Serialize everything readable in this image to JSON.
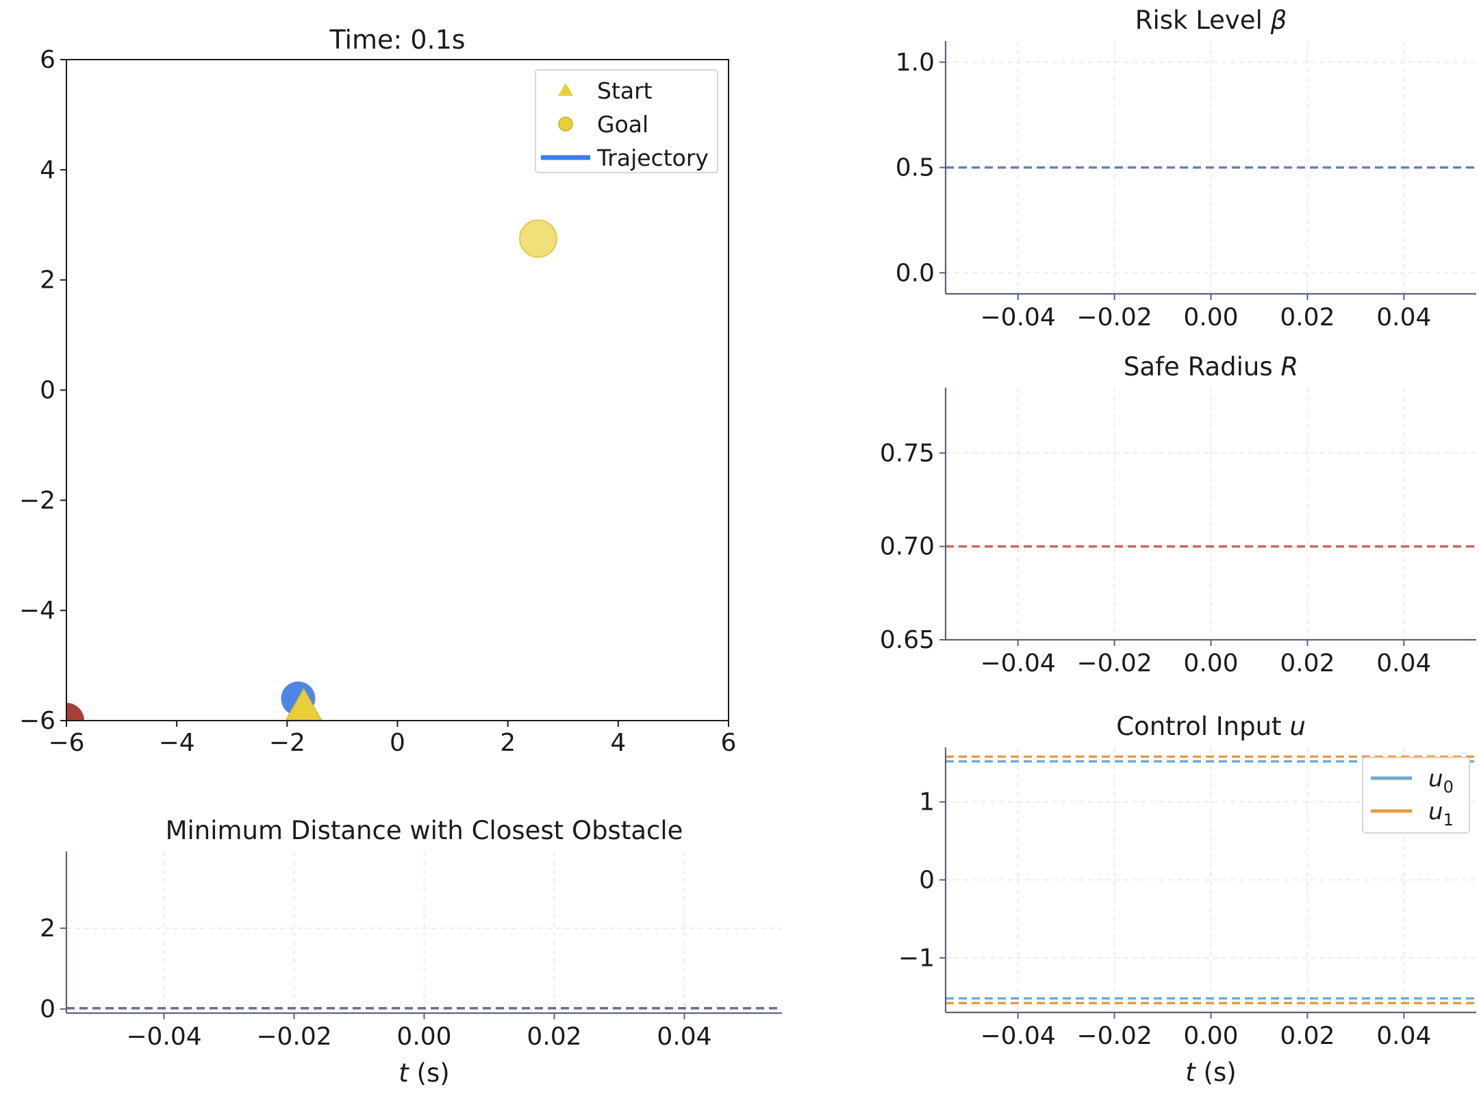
{
  "colors": {
    "start_goal": "#e8cf3a",
    "goal_marker": "#f0e07a",
    "trajectory": "#3c7ee8",
    "robot": "#4f86e6",
    "obstacle": "#a8403a",
    "risk_line": "#6a7fae",
    "radius_line": "#d2635e",
    "u0": "#6aaae0",
    "u1": "#ea9a3e",
    "dist_line": "#6a6e88",
    "spine": "#5a6478",
    "grid": "#e8e8e8"
  },
  "chart_data": [
    {
      "id": "trajectory_plot",
      "type": "scatter",
      "title": "Time: 0.1s",
      "xlim": [
        -6,
        6
      ],
      "ylim": [
        -6,
        6
      ],
      "xticks": [
        -6,
        -4,
        -2,
        0,
        2,
        4,
        6
      ],
      "yticks": [
        -6,
        -4,
        -2,
        0,
        2,
        4,
        6
      ],
      "tick_labels": [
        "−6",
        "−4",
        "−2",
        "0",
        "2",
        "4",
        "6"
      ],
      "grid": false,
      "legend": {
        "position": "top-right",
        "entries": [
          {
            "label": "Start",
            "marker": "triangle",
            "color": "#e8cf3a"
          },
          {
            "label": "Goal",
            "marker": "circle",
            "color": "#e8cf3a"
          },
          {
            "label": "Trajectory",
            "marker": "line",
            "color": "#3c7ee8"
          }
        ]
      },
      "points": [
        {
          "label": "Goal",
          "x": 2.55,
          "y": 2.75,
          "marker": "circle",
          "color": "#f0e07a"
        },
        {
          "label": "Robot",
          "x": -1.8,
          "y": -5.6,
          "marker": "circle",
          "color": "#4f86e6"
        },
        {
          "label": "Start",
          "x": -1.7,
          "y": -5.75,
          "marker": "triangle",
          "color": "#e8cf3a"
        },
        {
          "label": "Obstacle",
          "x": -6.0,
          "y": -6.0,
          "marker": "circle",
          "color": "#a8403a"
        }
      ]
    },
    {
      "id": "risk_level",
      "type": "line",
      "title": "Risk Level β",
      "xlim": [
        -0.055,
        0.055
      ],
      "ylim": [
        -0.1,
        1.1
      ],
      "xticks": [
        -0.04,
        -0.02,
        0.0,
        0.02,
        0.04
      ],
      "xtick_labels": [
        "−0.04",
        "−0.02",
        "0.00",
        "0.02",
        "0.04"
      ],
      "yticks": [
        0.0,
        0.5,
        1.0
      ],
      "ytick_labels": [
        "0.0",
        "0.5",
        "1.0"
      ],
      "grid": true,
      "series": [
        {
          "x": [
            -0.055,
            0.055
          ],
          "y": [
            0.5,
            0.5
          ],
          "style": "dashed",
          "color": "#6a7fae"
        }
      ]
    },
    {
      "id": "safe_radius",
      "type": "line",
      "title": "Safe Radius R",
      "xlim": [
        -0.055,
        0.055
      ],
      "ylim": [
        0.65,
        0.785
      ],
      "xticks": [
        -0.04,
        -0.02,
        0.0,
        0.02,
        0.04
      ],
      "xtick_labels": [
        "−0.04",
        "−0.02",
        "0.00",
        "0.02",
        "0.04"
      ],
      "yticks": [
        0.65,
        0.7,
        0.75
      ],
      "ytick_labels": [
        "0.65",
        "0.70",
        "0.75"
      ],
      "grid": true,
      "series": [
        {
          "x": [
            -0.055,
            0.055
          ],
          "y": [
            0.7,
            0.7
          ],
          "style": "dashed",
          "color": "#d2635e"
        }
      ]
    },
    {
      "id": "control_input",
      "type": "line",
      "title": "Control Input u",
      "xlabel": "t (s)",
      "xlim": [
        -0.055,
        0.055
      ],
      "ylim": [
        -1.7,
        1.7
      ],
      "xticks": [
        -0.04,
        -0.02,
        0.0,
        0.02,
        0.04
      ],
      "xtick_labels": [
        "−0.04",
        "−0.02",
        "0.00",
        "0.02",
        "0.04"
      ],
      "yticks": [
        -1,
        0,
        1
      ],
      "ytick_labels": [
        "−1",
        "0",
        "1"
      ],
      "grid": true,
      "legend": {
        "position": "top-right",
        "entries": [
          {
            "label": "u",
            "sub": "0",
            "color": "#6aaae0"
          },
          {
            "label": "u",
            "sub": "1",
            "color": "#ea9a3e"
          }
        ]
      },
      "series": [
        {
          "name": "u0",
          "x": [
            -0.055,
            0.055
          ],
          "y": [
            1.52,
            1.52
          ],
          "style": "dashed",
          "color": "#6aaae0"
        },
        {
          "name": "u0",
          "x": [
            -0.055,
            0.055
          ],
          "y": [
            -1.52,
            -1.52
          ],
          "style": "dashed",
          "color": "#6aaae0"
        },
        {
          "name": "u1",
          "x": [
            -0.055,
            0.055
          ],
          "y": [
            1.58,
            1.58
          ],
          "style": "dashed",
          "color": "#ea9a3e"
        },
        {
          "name": "u1",
          "x": [
            -0.055,
            0.055
          ],
          "y": [
            -1.58,
            -1.58
          ],
          "style": "dashed",
          "color": "#ea9a3e"
        }
      ]
    },
    {
      "id": "min_distance",
      "type": "line",
      "title": "Minimum Distance with Closest Obstacle",
      "xlabel": "t (s)",
      "xlim": [
        -0.055,
        0.055
      ],
      "ylim": [
        -0.1,
        3.9
      ],
      "xticks": [
        -0.04,
        -0.02,
        0.0,
        0.02,
        0.04
      ],
      "xtick_labels": [
        "−0.04",
        "−0.02",
        "0.00",
        "0.02",
        "0.04"
      ],
      "yticks": [
        0,
        2
      ],
      "ytick_labels": [
        "0",
        "2"
      ],
      "grid": true,
      "series": [
        {
          "x": [
            -0.055,
            0.055
          ],
          "y": [
            0.02,
            0.02
          ],
          "style": "dashed",
          "color": "#6a6e88"
        }
      ]
    }
  ]
}
